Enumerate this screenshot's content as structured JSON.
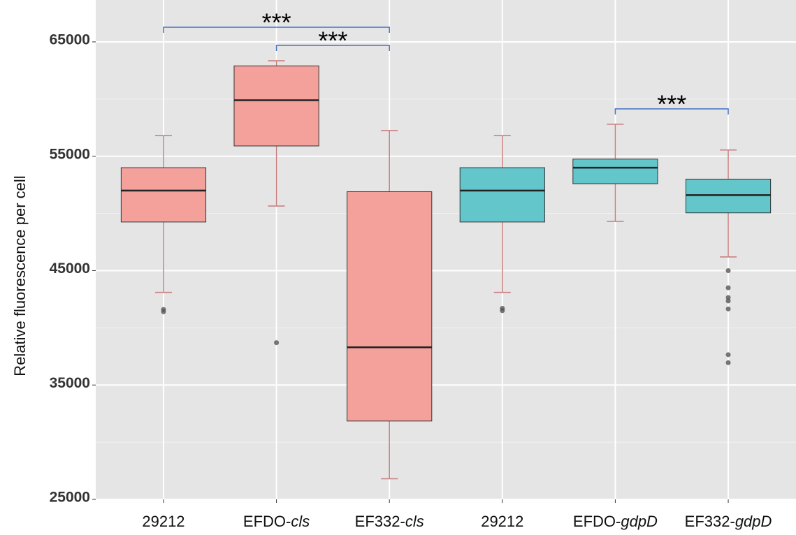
{
  "chart_data": {
    "type": "box",
    "y_label": "Relative fluorescence per cell",
    "categories": [
      "29212",
      "EFDO-cls",
      "EF332-cls",
      "29212",
      "EFDO-gdpD",
      "EF332-gdpD"
    ],
    "colors": [
      "#f4a19b",
      "#f4a19b",
      "#f4a19b",
      "#62c6cb",
      "#62c6cb",
      "#62c6cb"
    ],
    "whisker_color": "#c77b7b",
    "boxes": [
      {
        "whisker_low": 43100,
        "q1": 49250,
        "median": 52000,
        "q3": 54000,
        "whisker_high": 56800,
        "outliers": [
          41600,
          41400
        ]
      },
      {
        "whisker_low": 50650,
        "q1": 55900,
        "median": 59900,
        "q3": 62900,
        "whisker_high": 63350,
        "outliers": [
          38700
        ]
      },
      {
        "whisker_low": 26800,
        "q1": 31850,
        "median": 38300,
        "q3": 51900,
        "whisker_high": 57250,
        "outliers": []
      },
      {
        "whisker_low": 43100,
        "q1": 49250,
        "median": 52000,
        "q3": 54000,
        "whisker_high": 56800,
        "outliers": [
          41700,
          41500
        ]
      },
      {
        "whisker_low": 49300,
        "q1": 52600,
        "median": 54000,
        "q3": 54750,
        "whisker_high": 57800,
        "outliers": []
      },
      {
        "whisker_low": 46200,
        "q1": 50050,
        "median": 51600,
        "q3": 53000,
        "whisker_high": 55550,
        "outliers": [
          45000,
          43500,
          42650,
          42350,
          41650,
          37650,
          36950
        ]
      }
    ],
    "ylim": [
      25000,
      68660
    ],
    "yticks": [
      25000,
      35000,
      45000,
      55000,
      65000
    ],
    "minor_yticks": [
      30000,
      40000,
      50000,
      60000
    ],
    "grid": true,
    "significance": [
      {
        "from": 1,
        "to": 2,
        "label": "***"
      },
      {
        "from": 0,
        "to": 2,
        "label": "***"
      },
      {
        "from": 4,
        "to": 5,
        "label": "***"
      }
    ]
  }
}
